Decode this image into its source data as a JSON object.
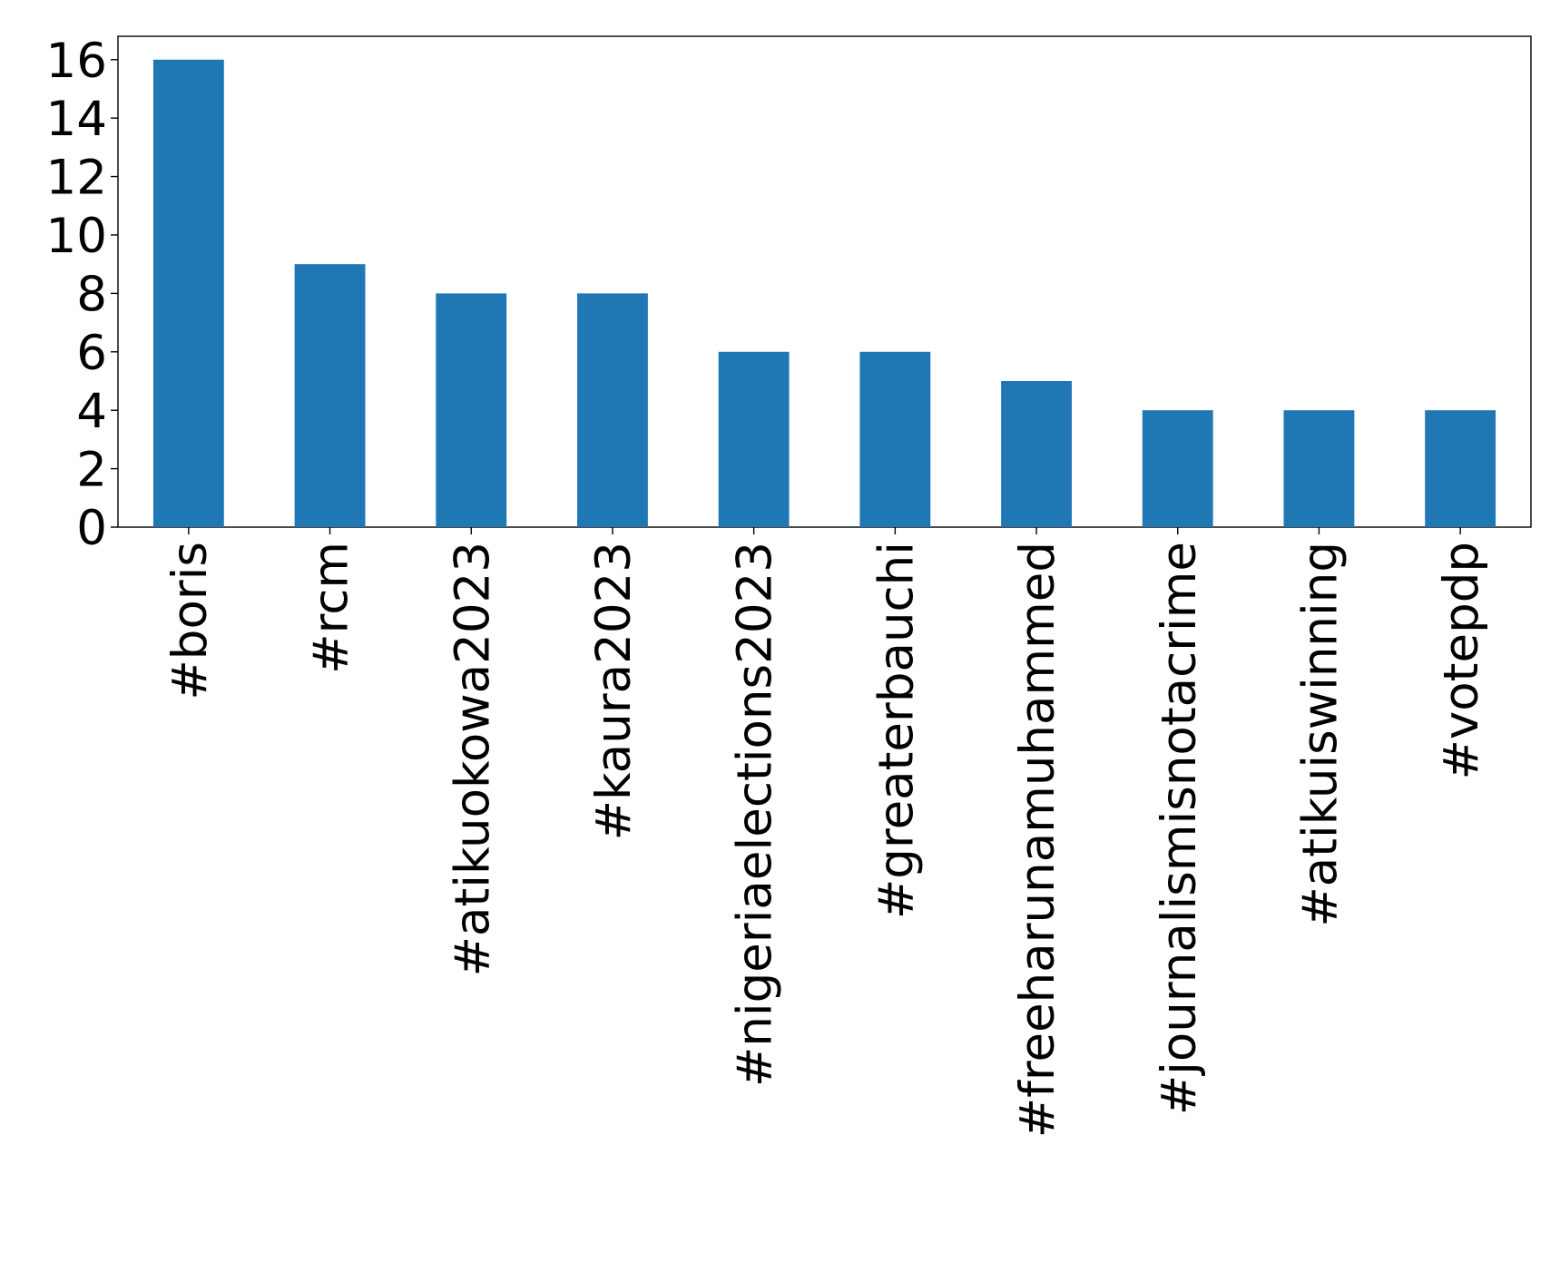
{
  "chart_data": {
    "type": "bar",
    "categories": [
      "#boris",
      "#rcm",
      "#atikuokowa2023",
      "#kaura2023",
      "#nigeriaelections2023",
      "#greaterbauchi",
      "#freeharunamuhammed",
      "#journalismisnotacrime",
      "#atikuiswinning",
      "#votepdp"
    ],
    "values": [
      16,
      9,
      8,
      8,
      6,
      6,
      5,
      4,
      4,
      4
    ],
    "color": "#1f77b4",
    "ylim": [
      0,
      16.8
    ],
    "yticks": [
      0,
      2,
      4,
      6,
      8,
      10,
      12,
      14,
      16
    ],
    "grid": false
  }
}
